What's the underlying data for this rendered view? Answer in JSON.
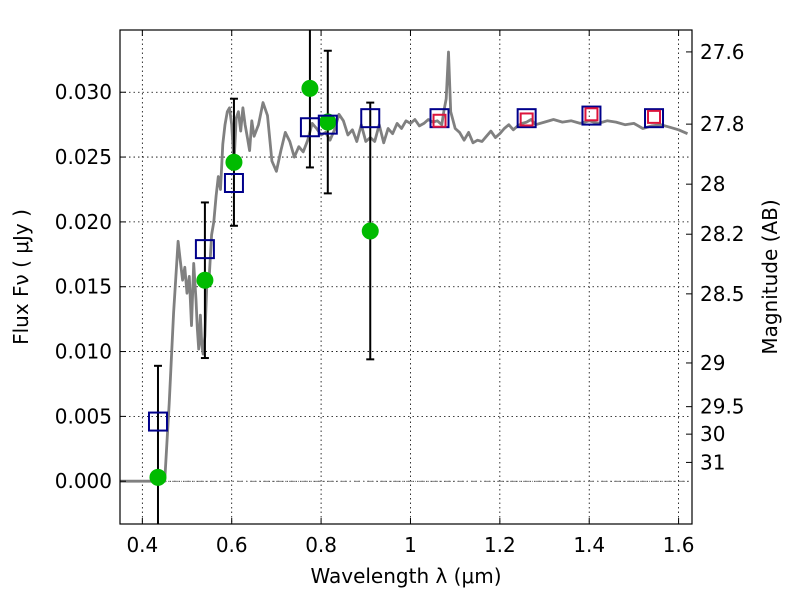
{
  "chart_data": {
    "type": "scatter",
    "xlabel": "Wavelength  λ (μm)",
    "ylabel": "Flux  Fν  ( μJy )",
    "ylabel_right": "Magnitude (AB)",
    "xlim": [
      0.35,
      1.63
    ],
    "ylim": [
      -0.0033,
      0.0348
    ],
    "x_ticks": [
      {
        "value": 0.4,
        "label": "0.4"
      },
      {
        "value": 0.6,
        "label": "0.6"
      },
      {
        "value": 0.8,
        "label": "0.8"
      },
      {
        "value": 1.0,
        "label": "1"
      },
      {
        "value": 1.2,
        "label": "1.2"
      },
      {
        "value": 1.4,
        "label": "1.4"
      },
      {
        "value": 1.6,
        "label": "1.6"
      }
    ],
    "y_ticks": [
      {
        "value": 0.0,
        "label": "0.000"
      },
      {
        "value": 0.005,
        "label": "0.005"
      },
      {
        "value": 0.01,
        "label": "0.010"
      },
      {
        "value": 0.015,
        "label": "0.015"
      },
      {
        "value": 0.02,
        "label": "0.020"
      },
      {
        "value": 0.025,
        "label": "0.025"
      },
      {
        "value": 0.03,
        "label": "0.030"
      }
    ],
    "right_ticks": [
      {
        "flux": 0.03311,
        "label": "27.6"
      },
      {
        "flux": 0.02754,
        "label": "27.8"
      },
      {
        "flux": 0.02291,
        "label": "28"
      },
      {
        "flux": 0.01905,
        "label": "28.2"
      },
      {
        "flux": 0.01445,
        "label": "28.5"
      },
      {
        "flux": 0.00912,
        "label": "29"
      },
      {
        "flux": 0.00575,
        "label": "29.5"
      },
      {
        "flux": 0.00363,
        "label": "30"
      },
      {
        "flux": 0.00145,
        "label": "31"
      }
    ],
    "grid": true,
    "series": [
      {
        "type": "line",
        "color": "#808080",
        "x": [
          0.35,
          0.45,
          0.46,
          0.47,
          0.48,
          0.485,
          0.49,
          0.495,
          0.5,
          0.505,
          0.51,
          0.515,
          0.52,
          0.523,
          0.526,
          0.53,
          0.533,
          0.536,
          0.54,
          0.545,
          0.55,
          0.555,
          0.56,
          0.565,
          0.57,
          0.575,
          0.58,
          0.585,
          0.59,
          0.595,
          0.6,
          0.605,
          0.61,
          0.615,
          0.62,
          0.625,
          0.63,
          0.635,
          0.64,
          0.645,
          0.65,
          0.66,
          0.67,
          0.68,
          0.69,
          0.7,
          0.71,
          0.72,
          0.73,
          0.74,
          0.75,
          0.76,
          0.77,
          0.78,
          0.79,
          0.8,
          0.81,
          0.82,
          0.83,
          0.84,
          0.85,
          0.86,
          0.87,
          0.88,
          0.89,
          0.9,
          0.91,
          0.92,
          0.93,
          0.94,
          0.95,
          0.96,
          0.97,
          0.98,
          0.99,
          1.0,
          1.01,
          1.02,
          1.03,
          1.04,
          1.05,
          1.06,
          1.07,
          1.075,
          1.08,
          1.085,
          1.09,
          1.1,
          1.11,
          1.12,
          1.13,
          1.14,
          1.15,
          1.16,
          1.17,
          1.18,
          1.19,
          1.2,
          1.21,
          1.22,
          1.23,
          1.24,
          1.25,
          1.26,
          1.27,
          1.28,
          1.3,
          1.32,
          1.34,
          1.36,
          1.38,
          1.4,
          1.42,
          1.44,
          1.46,
          1.48,
          1.5,
          1.52,
          1.54,
          1.56,
          1.58,
          1.6,
          1.62
        ],
        "y": [
          0.0,
          0.0,
          0.006,
          0.013,
          0.0185,
          0.017,
          0.0155,
          0.0165,
          0.0145,
          0.0158,
          0.012,
          0.0168,
          0.014,
          0.0118,
          0.0102,
          0.0128,
          0.0105,
          0.0098,
          0.0112,
          0.0157,
          0.016,
          0.019,
          0.02,
          0.022,
          0.0235,
          0.0225,
          0.026,
          0.0275,
          0.0285,
          0.0288,
          0.0275,
          0.0245,
          0.028,
          0.0285,
          0.027,
          0.0288,
          0.0275,
          0.0265,
          0.0255,
          0.0278,
          0.0266,
          0.0275,
          0.0292,
          0.0282,
          0.0247,
          0.0239,
          0.0255,
          0.0269,
          0.0262,
          0.025,
          0.0258,
          0.0254,
          0.0263,
          0.0276,
          0.0272,
          0.0267,
          0.0269,
          0.0263,
          0.0271,
          0.0283,
          0.0278,
          0.0267,
          0.0271,
          0.0262,
          0.0275,
          0.0262,
          0.0265,
          0.0262,
          0.0275,
          0.0261,
          0.0272,
          0.0268,
          0.0276,
          0.0272,
          0.0278,
          0.0276,
          0.0279,
          0.0274,
          0.0276,
          0.0279,
          0.0277,
          0.0278,
          0.0275,
          0.0286,
          0.0295,
          0.0331,
          0.0285,
          0.0272,
          0.0269,
          0.0263,
          0.0269,
          0.0261,
          0.0263,
          0.0262,
          0.0266,
          0.027,
          0.0265,
          0.0268,
          0.0272,
          0.0275,
          0.0271,
          0.0274,
          0.0276,
          0.0277,
          0.0279,
          0.0275,
          0.0277,
          0.0279,
          0.0277,
          0.0278,
          0.0276,
          0.0278,
          0.0276,
          0.0278,
          0.0277,
          0.0275,
          0.0276,
          0.0272,
          0.0274,
          0.0275,
          0.0273,
          0.0271,
          0.0268
        ]
      },
      {
        "type": "marker",
        "marker": "circle",
        "color": "#00bb00",
        "x": [
          0.435,
          0.54,
          0.605,
          0.775,
          0.815,
          0.91
        ],
        "y": [
          0.0003,
          0.0155,
          0.0246,
          0.0303,
          0.0277,
          0.0193
        ],
        "yerr": [
          0.0086,
          0.006,
          0.0049,
          0.0061,
          0.0055,
          0.0099
        ]
      },
      {
        "type": "marker",
        "marker": "square-open",
        "color": "#00008b",
        "x": [
          0.435,
          0.54,
          0.605,
          0.775,
          0.815,
          0.91,
          1.065,
          1.26,
          1.405,
          1.545
        ],
        "y": [
          0.0046,
          0.0179,
          0.023,
          0.0273,
          0.0275,
          0.028,
          0.028,
          0.028,
          0.0282,
          0.028
        ]
      },
      {
        "type": "marker",
        "marker": "square-open",
        "color": "#dc143c",
        "x": [
          1.065,
          1.26,
          1.405,
          1.545
        ],
        "y": [
          0.0278,
          0.0279,
          0.0283,
          0.0281
        ]
      }
    ]
  }
}
